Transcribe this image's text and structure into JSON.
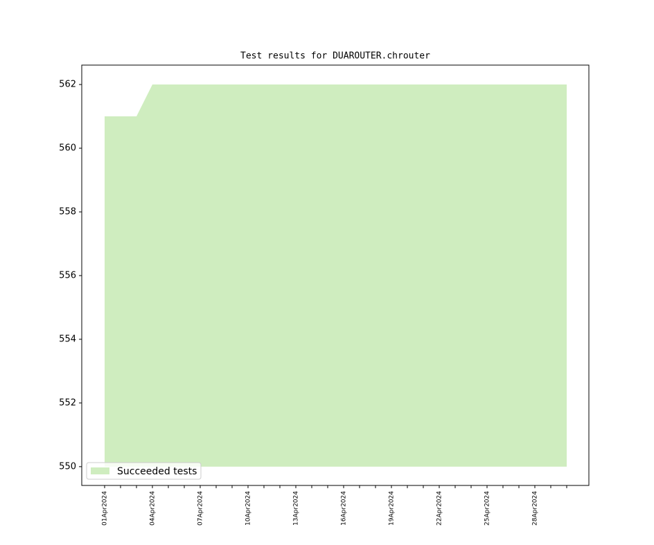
{
  "chart_data": {
    "type": "area",
    "title": "Test results for DUAROUTER.chrouter",
    "x": [
      "01Apr2024",
      null,
      null,
      "04Apr2024",
      null,
      null,
      "07Apr2024",
      null,
      null,
      "10Apr2024",
      null,
      null,
      "13Apr2024",
      null,
      null,
      "16Apr2024",
      null,
      null,
      "19Apr2024",
      null,
      null,
      "22Apr2024",
      null,
      null,
      "25Apr2024",
      null,
      null,
      "28Apr2024",
      null,
      null
    ],
    "series": [
      {
        "name": "Succeeded tests",
        "color": "#cfedbf",
        "values": [
          561,
          561,
          561,
          562,
          562,
          562,
          562,
          562,
          562,
          562,
          562,
          562,
          562,
          562,
          562,
          562,
          562,
          562,
          562,
          562,
          562,
          562,
          562,
          562,
          562,
          562,
          562,
          562,
          562,
          562
        ]
      }
    ],
    "fill_base": 550,
    "ylim": [
      549.41,
      562.61
    ],
    "yticks": [
      550,
      552,
      554,
      556,
      558,
      560,
      562
    ],
    "legend": "lower left"
  }
}
